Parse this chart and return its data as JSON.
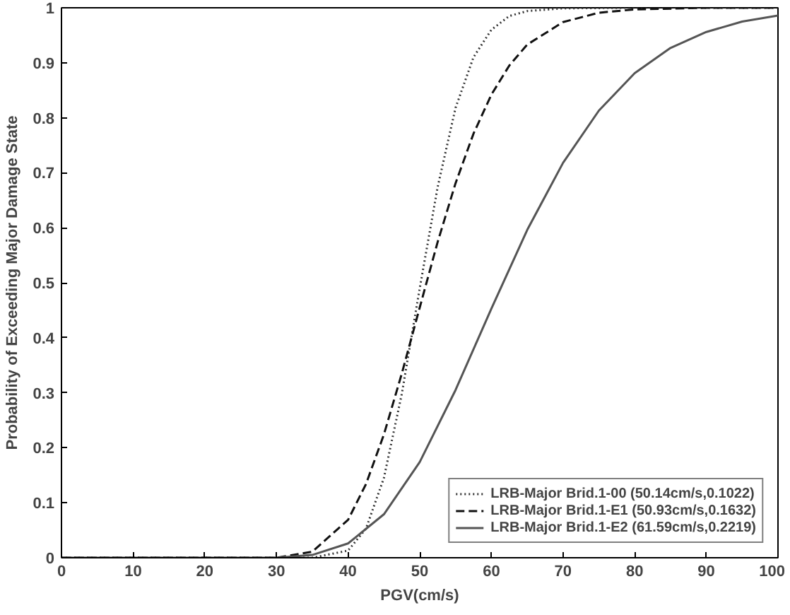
{
  "chart_data": {
    "type": "line",
    "xlabel": "PGV(cm/s)",
    "ylabel": "Probability of Exceeding Major Damage State",
    "xlim": [
      0,
      100
    ],
    "ylim": [
      0,
      1
    ],
    "xticks": [
      0,
      10,
      20,
      30,
      40,
      50,
      60,
      70,
      80,
      90,
      100
    ],
    "yticks": [
      0,
      0.1,
      0.2,
      0.3,
      0.4,
      0.5,
      0.6,
      0.7,
      0.8,
      0.9,
      1
    ],
    "grid": false,
    "legend": "bottom right",
    "marker": "none",
    "series": [
      {
        "name": "LRB-Major Brid.1-00 (50.14cm/s,0.1022)",
        "color": "#333333",
        "line_style": "dotted",
        "x": [
          0,
          35,
          40,
          42.5,
          45,
          47.5,
          50,
          52.5,
          55,
          57.5,
          60,
          62.5,
          65,
          70,
          80,
          100
        ],
        "values": [
          0,
          0,
          0.013,
          0.053,
          0.145,
          0.298,
          0.49,
          0.674,
          0.818,
          0.91,
          0.96,
          0.985,
          0.994,
          0.999,
          1,
          1
        ]
      },
      {
        "name": "LRB-Major Brid.1-E1 (50.93cm/s,0.1632)",
        "color": "#111111",
        "line_style": "dashed",
        "x": [
          0,
          30,
          35,
          40,
          42.5,
          45,
          47.5,
          50,
          52.5,
          55,
          57.5,
          60,
          62.5,
          65,
          70,
          75,
          80,
          90,
          100
        ],
        "values": [
          0,
          0,
          0.011,
          0.069,
          0.134,
          0.224,
          0.335,
          0.455,
          0.574,
          0.681,
          0.771,
          0.842,
          0.895,
          0.933,
          0.974,
          0.991,
          0.997,
          1,
          1
        ]
      },
      {
        "name": "LRB-Major Brid.1-E2 (61.59cm/s,0.2219)",
        "color": "#555555",
        "line_style": "solid",
        "x": [
          0,
          30,
          35,
          40,
          45,
          50,
          55,
          60,
          65,
          70,
          75,
          80,
          85,
          90,
          95,
          100
        ],
        "values": [
          0,
          0,
          0.005,
          0.026,
          0.079,
          0.174,
          0.305,
          0.453,
          0.596,
          0.718,
          0.813,
          0.881,
          0.927,
          0.956,
          0.975,
          0.986
        ]
      }
    ]
  }
}
